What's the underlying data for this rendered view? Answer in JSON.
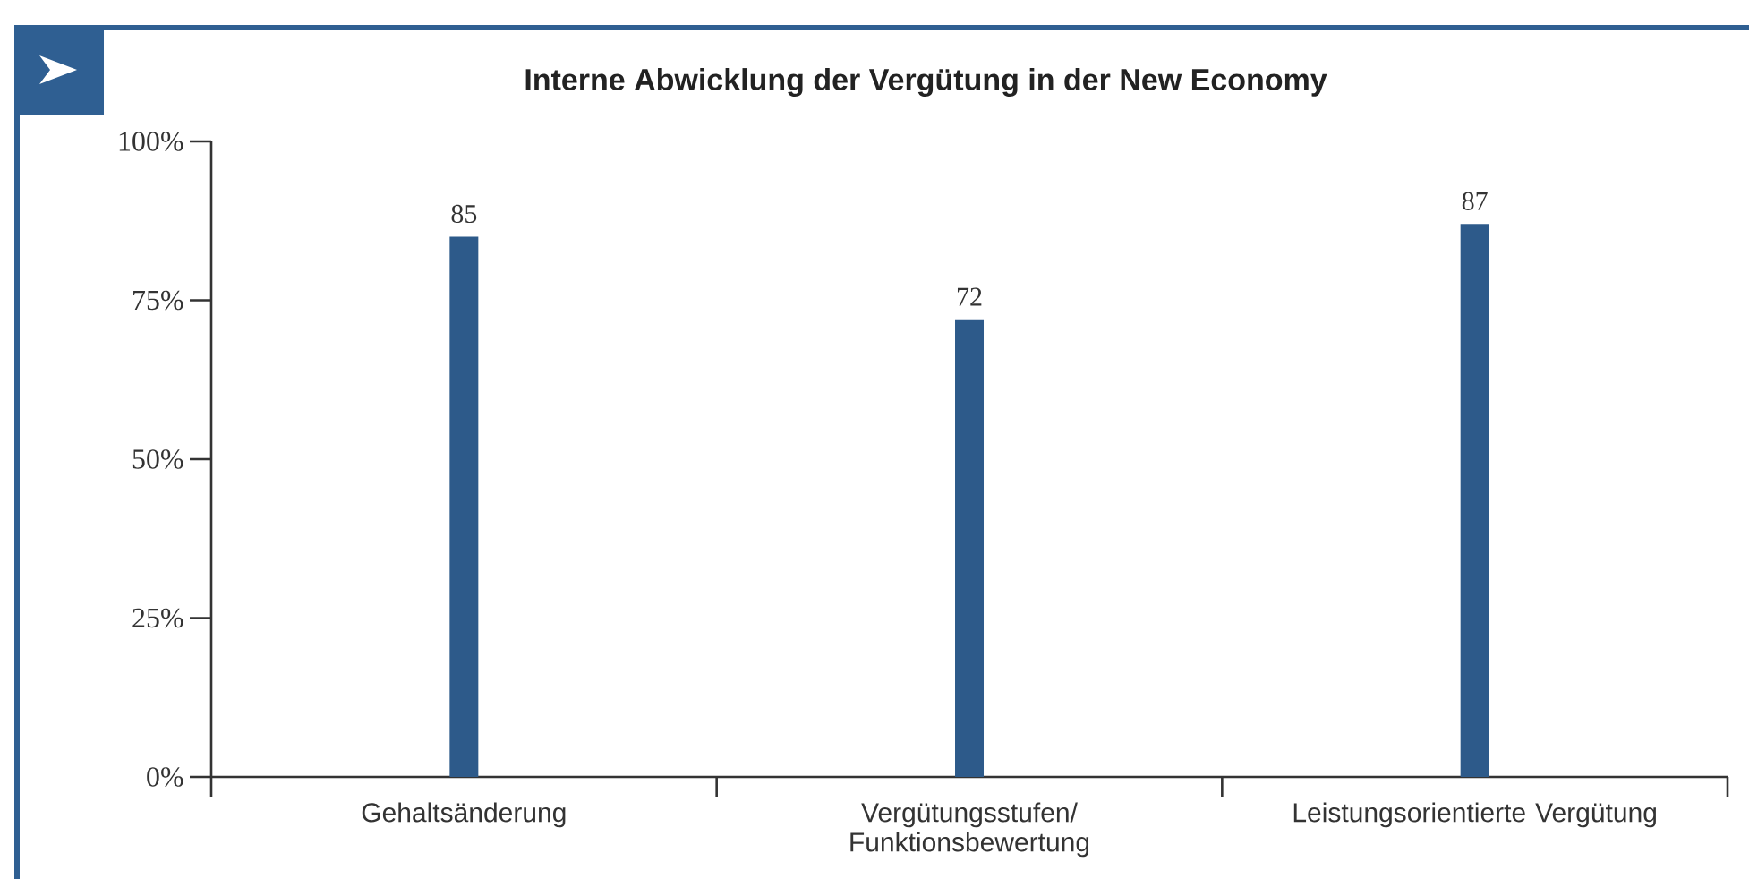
{
  "chart_data": {
    "type": "bar",
    "title": "Interne Abwicklung der Vergütung in der New Economy",
    "categories": [
      "Gehaltsänderung",
      "Vergütungsstufen/ Funktionsbewertung",
      "Leistungsorientierte Vergütung"
    ],
    "values": [
      85,
      72,
      87
    ],
    "color": "#2d5a8a",
    "ylim": [
      0,
      100
    ],
    "yticks": [
      {
        "value": 0,
        "label": "0%"
      },
      {
        "value": 25,
        "label": "25%"
      },
      {
        "value": 50,
        "label": "50%"
      },
      {
        "value": 75,
        "label": "75%"
      },
      {
        "value": 100,
        "label": "100%"
      }
    ],
    "data_labels": true
  }
}
